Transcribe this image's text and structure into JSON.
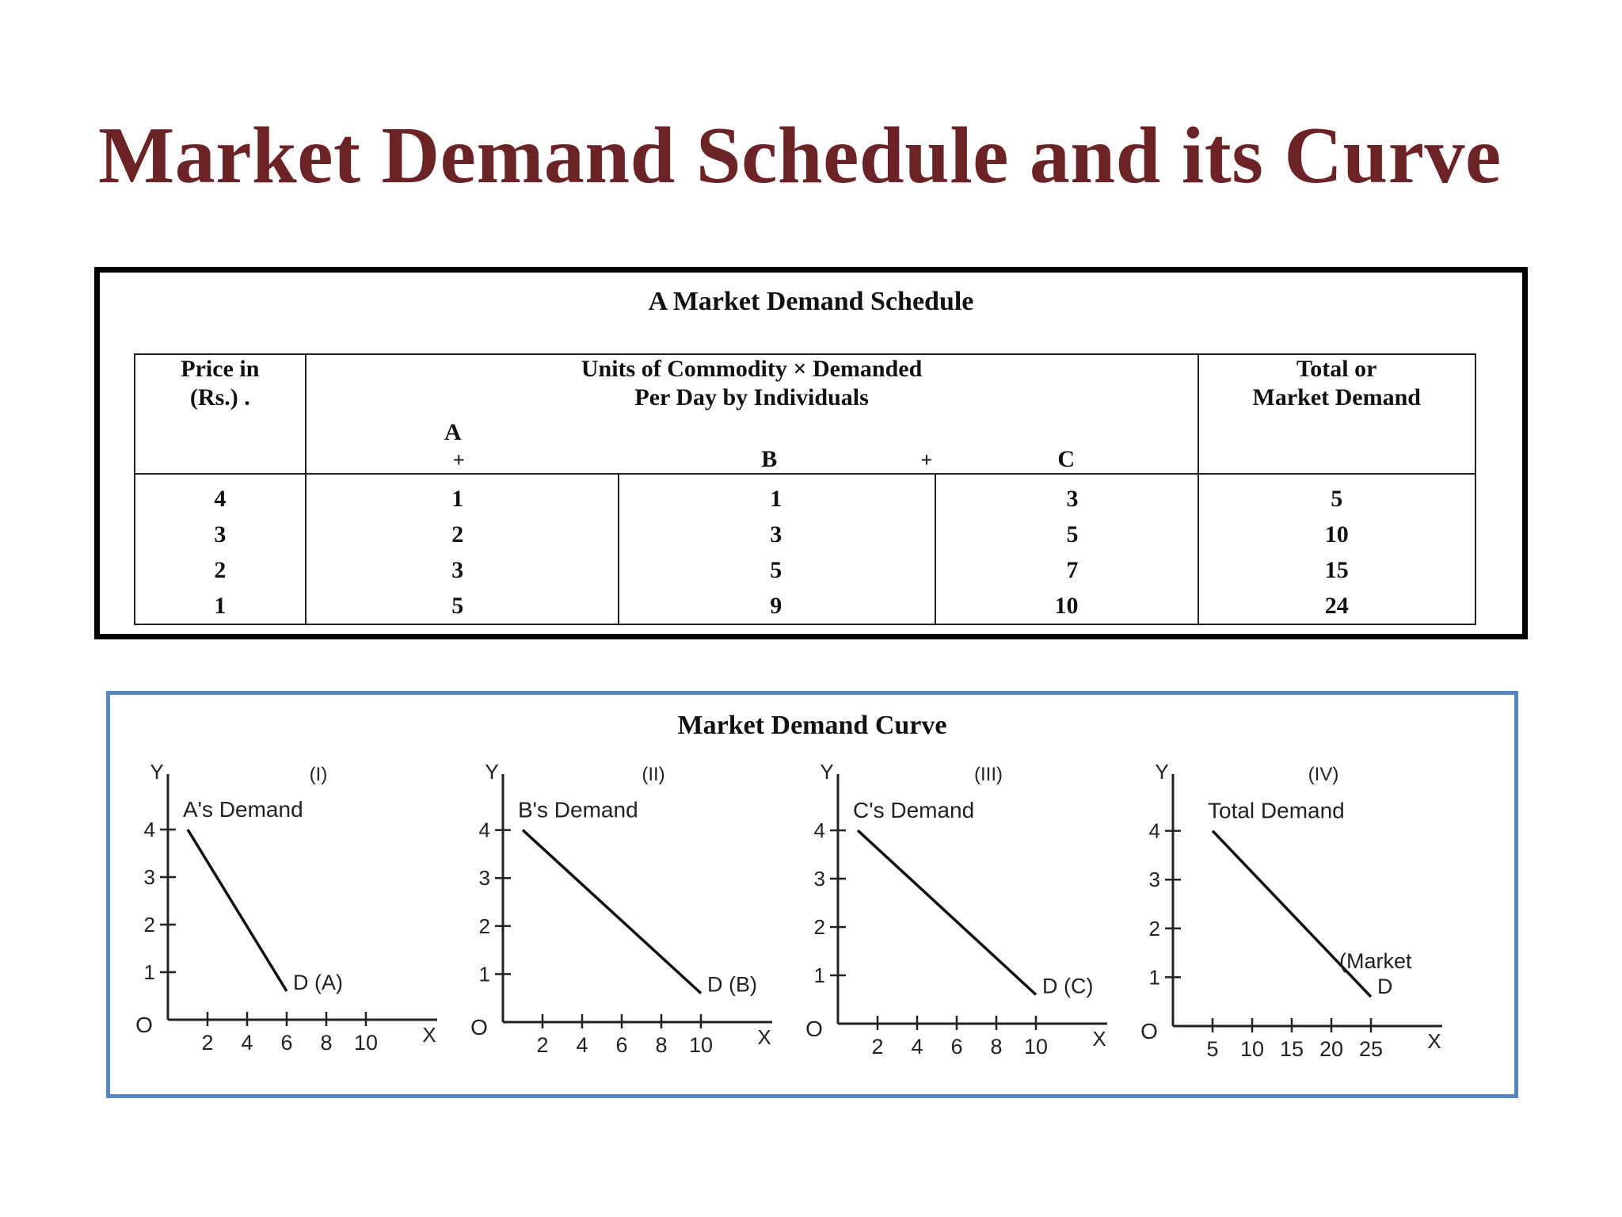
{
  "title": "Market Demand Schedule and its  Curve",
  "schedule": {
    "caption": "A Market Demand Schedule",
    "price_header_line1": "Price in",
    "price_header_line2": "(Rs.) .",
    "units_header_line1": "Units of Commodity × Demanded",
    "units_header_line2": "Per Day by Individuals",
    "total_header_line1": "Total or",
    "total_header_line2": "Market Demand",
    "sub_a": "A",
    "sub_b": "B",
    "sub_c": "C",
    "plus": "+",
    "rows": [
      {
        "price": "4",
        "a": "1",
        "b": "1",
        "c": "3",
        "total": "5"
      },
      {
        "price": "3",
        "a": "2",
        "b": "3",
        "c": "5",
        "total": "10"
      },
      {
        "price": "2",
        "a": "3",
        "b": "5",
        "c": "7",
        "total": "15"
      },
      {
        "price": "1",
        "a": "5",
        "b": "9",
        "c": "10",
        "total": "24"
      }
    ]
  },
  "curves_caption": "Market Demand Curve",
  "chart_data": [
    {
      "type": "line",
      "panel_label": "(I)",
      "curve_label": "A's Demand",
      "end_label": "D (A)",
      "y_axis_letter": "Y",
      "x_axis_letter": "X",
      "origin_label": "O",
      "x_ticks": [
        "2",
        "4",
        "6",
        "8",
        "10"
      ],
      "y_ticks": [
        "1",
        "2",
        "3",
        "4"
      ],
      "xlim": [
        0,
        12
      ],
      "ylim": [
        0,
        5
      ],
      "x": [
        1,
        6
      ],
      "y": [
        4,
        0.6
      ]
    },
    {
      "type": "line",
      "panel_label": "(II)",
      "curve_label": "B's Demand",
      "end_label": "D (B)",
      "y_axis_letter": "Y",
      "x_axis_letter": "X",
      "origin_label": "O",
      "x_ticks": [
        "2",
        "4",
        "6",
        "8",
        "10"
      ],
      "y_ticks": [
        "1",
        "2",
        "3",
        "4"
      ],
      "xlim": [
        0,
        12
      ],
      "ylim": [
        0,
        5
      ],
      "x": [
        1,
        10
      ],
      "y": [
        4,
        0.6
      ]
    },
    {
      "type": "line",
      "panel_label": "(III)",
      "curve_label": "C's Demand",
      "end_label": "D (C)",
      "y_axis_letter": "Y",
      "x_axis_letter": "X",
      "origin_label": "O",
      "x_ticks": [
        "2",
        "4",
        "6",
        "8",
        "10"
      ],
      "y_ticks": [
        "1",
        "2",
        "3",
        "4"
      ],
      "xlim": [
        0,
        12
      ],
      "ylim": [
        0,
        5
      ],
      "x": [
        1,
        10
      ],
      "y": [
        4,
        0.6
      ]
    },
    {
      "type": "line",
      "panel_label": "(IV)",
      "curve_label": "Total Demand",
      "end_label": "(Market\nD",
      "y_axis_letter": "Y",
      "x_axis_letter": "X",
      "origin_label": "O",
      "x_ticks": [
        "5",
        "10",
        "15",
        "20",
        "25"
      ],
      "y_ticks": [
        "1",
        "2",
        "3",
        "4"
      ],
      "xlim": [
        0,
        30
      ],
      "ylim": [
        0,
        5
      ],
      "x": [
        5,
        25
      ],
      "y": [
        4,
        0.6
      ]
    }
  ]
}
